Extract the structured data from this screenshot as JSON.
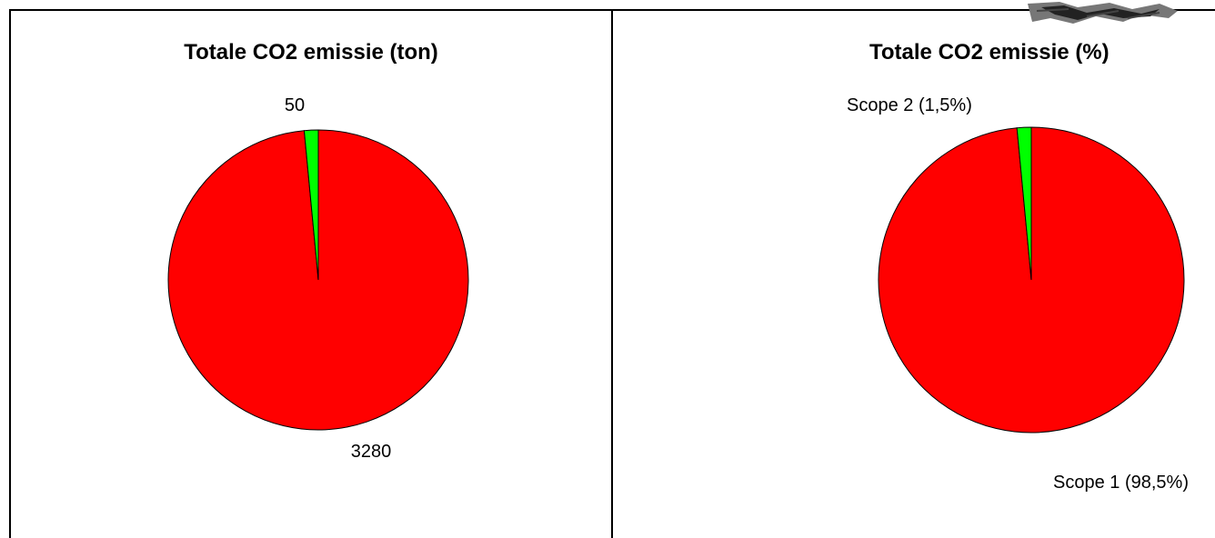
{
  "chart_data": [
    {
      "type": "pie",
      "title": "Totale CO2 emissie (ton)",
      "categories": [
        "Scope 1",
        "Scope 2"
      ],
      "values": [
        3280,
        50
      ],
      "data_labels": [
        "3280",
        "50"
      ],
      "colors": [
        "#ff0000",
        "#00ff00"
      ],
      "legend": "none"
    },
    {
      "type": "pie",
      "title": "Totale CO2 emissie (%)",
      "categories": [
        "Scope 1",
        "Scope 2"
      ],
      "values": [
        98.5,
        1.5
      ],
      "data_labels": [
        "Scope 1 (98,5%)",
        "Scope 2 (1,5%)"
      ],
      "colors": [
        "#ff0000",
        "#00ff00"
      ],
      "legend": "none"
    }
  ]
}
